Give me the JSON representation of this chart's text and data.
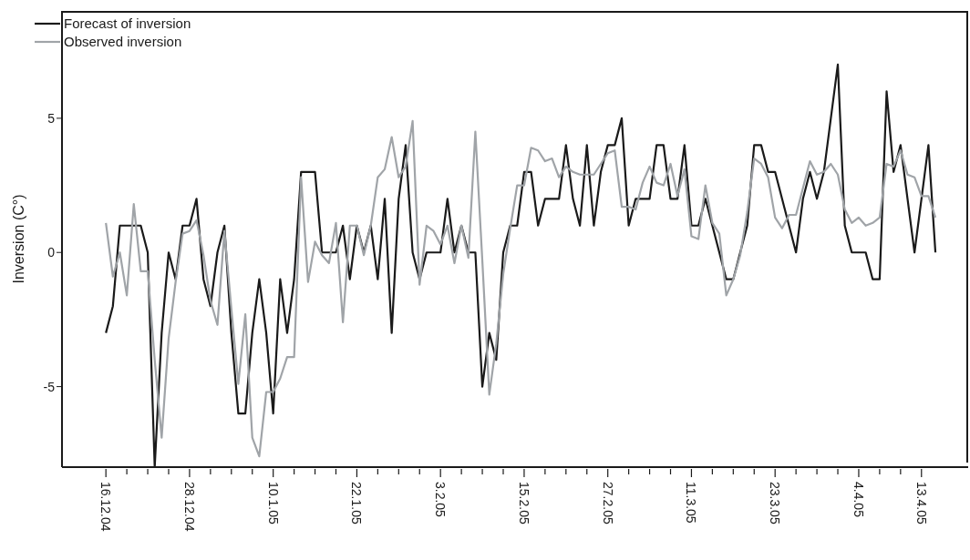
{
  "chart_data": {
    "type": "line",
    "ylabel": "Inversion (C°)",
    "categories": [
      "16.12.04",
      null,
      null,
      null,
      null,
      null,
      null,
      null,
      null,
      null,
      null,
      null,
      "28.12.04",
      null,
      null,
      null,
      null,
      null,
      null,
      null,
      null,
      null,
      null,
      null,
      "10.1.05",
      null,
      null,
      null,
      null,
      null,
      null,
      null,
      null,
      null,
      null,
      null,
      "22.1.05",
      null,
      null,
      null,
      null,
      null,
      null,
      null,
      null,
      null,
      null,
      null,
      "3.2.05",
      null,
      null,
      null,
      null,
      null,
      null,
      null,
      null,
      null,
      null,
      null,
      "15.2.05",
      null,
      null,
      null,
      null,
      null,
      null,
      null,
      null,
      null,
      null,
      null,
      "27.2.05",
      null,
      null,
      null,
      null,
      null,
      null,
      null,
      null,
      null,
      null,
      null,
      "11.3.05",
      null,
      null,
      null,
      null,
      null,
      null,
      null,
      null,
      null,
      null,
      null,
      "23.3.05",
      null,
      null,
      null,
      null,
      null,
      null,
      null,
      null,
      null,
      null,
      null,
      "4.4.05",
      null,
      null,
      null,
      null,
      null,
      null,
      null,
      null,
      "13.4.05",
      null,
      null
    ],
    "series": [
      {
        "name": "Forecast of inversion",
        "color": "#1a1a1a",
        "values": [
          -3,
          -2,
          1,
          1,
          1,
          1,
          0,
          -8,
          -3,
          0,
          -1,
          1,
          1,
          2,
          -1,
          -2,
          0,
          1,
          -3,
          -6,
          -6,
          -3,
          -1,
          -3,
          -6,
          -1,
          -3,
          -1,
          3,
          3,
          3,
          0,
          0,
          0,
          1,
          -1,
          1,
          0,
          1,
          -1,
          2,
          -3,
          2,
          4,
          0,
          -1,
          0,
          0,
          0,
          2,
          0,
          1,
          0,
          0,
          -5,
          -3,
          -4,
          0,
          1,
          1,
          3,
          3,
          1,
          2,
          2,
          2,
          4,
          2,
          1,
          4,
          1,
          3,
          4,
          4,
          5,
          1,
          2,
          2,
          2,
          4,
          4,
          2,
          2,
          4,
          1,
          1,
          2,
          1,
          0,
          -1,
          -1,
          0,
          1,
          4,
          4,
          3,
          3,
          2,
          1,
          0,
          2,
          3,
          2,
          3,
          5,
          7,
          1,
          0,
          0,
          0,
          -1,
          -1,
          6,
          3,
          4,
          2,
          0,
          2,
          4,
          0
        ]
      },
      {
        "name": "Observed inversion",
        "color": "#a0a4a8",
        "values": [
          1.1,
          -0.9,
          0,
          -1.6,
          1.8,
          -0.7,
          -0.7,
          -4,
          -6.9,
          -3.2,
          -1.1,
          0.7,
          0.8,
          1.2,
          -0.1,
          -1.8,
          -2.7,
          0.8,
          -2.1,
          -4.9,
          -2.3,
          -6.9,
          -7.6,
          -5.2,
          -5.2,
          -4.7,
          -3.9,
          -3.9,
          2.8,
          -1.1,
          0.4,
          -0.1,
          -0.4,
          1.1,
          -2.6,
          1,
          1,
          -0.1,
          1,
          2.8,
          3.1,
          4.3,
          2.8,
          3.2,
          4.9,
          -1.2,
          1,
          0.8,
          0.3,
          1,
          -0.4,
          1,
          -0.2,
          4.5,
          -0.3,
          -5.3,
          -3.4,
          -0.8,
          0.9,
          2.5,
          2.5,
          3.9,
          3.8,
          3.4,
          3.5,
          2.8,
          3.2,
          3,
          2.9,
          2.9,
          2.9,
          3.3,
          3.7,
          3.8,
          1.7,
          1.7,
          1.6,
          2.6,
          3.2,
          2.6,
          2.5,
          3.3,
          2.1,
          3.1,
          0.6,
          0.5,
          2.5,
          1.1,
          0.7,
          -1.6,
          -1,
          -0.1,
          1.5,
          3.5,
          3.3,
          2.8,
          1.3,
          0.9,
          1.4,
          1.4,
          2.4,
          3.4,
          2.9,
          3,
          3.3,
          2.9,
          1.6,
          1.1,
          1.3,
          1,
          1.1,
          1.3,
          3.3,
          3.2,
          3.8,
          2.9,
          2.8,
          2.1,
          2.1,
          1.3
        ]
      }
    ],
    "ylim": [
      -8,
      9
    ],
    "yticks": [
      -5,
      0,
      5
    ],
    "grid": false,
    "legend": "top left",
    "line_style": "solid"
  }
}
